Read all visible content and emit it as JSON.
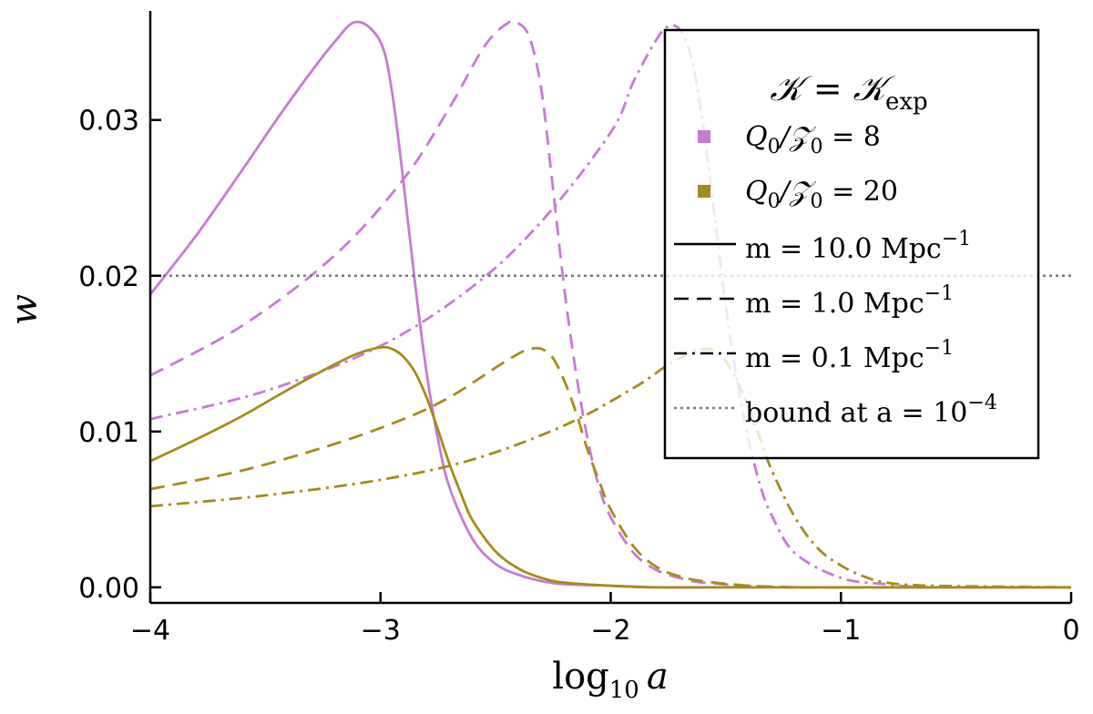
{
  "chart_data": {
    "type": "line",
    "title": "",
    "xlabel_main": "log",
    "xlabel_sub": "10",
    "xlabel_var": "a",
    "ylabel": "w",
    "xlim": [
      -4,
      0
    ],
    "ylim": [
      -0.001,
      0.037
    ],
    "xticks": [
      -4,
      -3,
      -2,
      -1,
      0
    ],
    "xtick_labels": [
      "−4",
      "−3",
      "−2",
      "−1",
      "0"
    ],
    "yticks": [
      0.0,
      0.01,
      0.02,
      0.03
    ],
    "ytick_labels": [
      "0.00",
      "0.01",
      "0.02",
      "0.03"
    ],
    "grid": false,
    "legend_placement": "top-right",
    "bound_value": 0.02,
    "colors": {
      "Q8": "#c77ad6",
      "Q20": "#a68b1a",
      "bound": "#7a7a7a"
    },
    "legend": {
      "title": {
        "lhs": "𝒦 = 𝒦",
        "sub": "exp"
      },
      "items": [
        {
          "key": "q8",
          "base": "Q",
          "sub": "0",
          "rest": "/𝒵",
          "sub2": "0",
          "tail": " = 8",
          "color": "#c77ad6",
          "marker": "square"
        },
        {
          "key": "q20",
          "base": "Q",
          "sub": "0",
          "rest": "/𝒵",
          "sub2": "0",
          "tail": " = 20",
          "color": "#a68b1a",
          "marker": "square"
        },
        {
          "key": "m10",
          "text": "m = 10.0 Mpc",
          "sup": "−1",
          "dash": "solid"
        },
        {
          "key": "m1",
          "text": "m = 1.0 Mpc",
          "sup": "−1",
          "dash": "dash"
        },
        {
          "key": "m01",
          "text": "m = 0.1 Mpc",
          "sup": "−1",
          "dash": "dashdot"
        },
        {
          "key": "bound",
          "text": "bound at a = 10",
          "sup": "−4",
          "dash": "dot"
        }
      ]
    },
    "series": [
      {
        "Q": 8,
        "m": 10.0,
        "color": "#c77ad6",
        "dash": "solid",
        "x": [
          -4.0,
          -3.8,
          -3.6,
          -3.4,
          -3.2,
          -3.1,
          -3.0,
          -2.95,
          -2.9,
          -2.85,
          -2.8,
          -2.75,
          -2.7,
          -2.6,
          -2.5,
          -2.4,
          -2.3,
          -2.2,
          -2.0,
          -1.8,
          -1.5,
          -1.0,
          0.0
        ],
        "y": [
          0.0188,
          0.0226,
          0.0268,
          0.0311,
          0.035,
          0.0363,
          0.035,
          0.0318,
          0.026,
          0.0195,
          0.0138,
          0.0095,
          0.0064,
          0.0031,
          0.0015,
          0.0008,
          0.0004,
          0.0002,
          0.0001,
          0.0,
          0.0,
          0.0,
          0.0
        ]
      },
      {
        "Q": 8,
        "m": 1.0,
        "color": "#c77ad6",
        "dash": "dash",
        "x": [
          -4.0,
          -3.6,
          -3.2,
          -2.9,
          -2.7,
          -2.55,
          -2.45,
          -2.4,
          -2.35,
          -2.3,
          -2.25,
          -2.2,
          -2.15,
          -2.1,
          -2.05,
          -2.0,
          -1.9,
          -1.8,
          -1.7,
          -1.6,
          -1.4,
          -1.2,
          -1.0,
          0.0
        ],
        "y": [
          0.0136,
          0.0168,
          0.0213,
          0.0262,
          0.0308,
          0.0347,
          0.0362,
          0.0362,
          0.0352,
          0.0318,
          0.0255,
          0.019,
          0.0137,
          0.0095,
          0.0064,
          0.0045,
          0.0022,
          0.0011,
          0.0006,
          0.0003,
          0.0001,
          0.0,
          0.0,
          0.0
        ]
      },
      {
        "Q": 8,
        "m": 0.1,
        "color": "#c77ad6",
        "dash": "dashdot",
        "x": [
          -4.0,
          -3.5,
          -3.0,
          -2.6,
          -2.3,
          -2.0,
          -1.9,
          -1.8,
          -1.75,
          -1.7,
          -1.65,
          -1.6,
          -1.55,
          -1.5,
          -1.45,
          -1.4,
          -1.35,
          -1.3,
          -1.2,
          -1.0,
          -0.8,
          -0.6,
          0.0
        ],
        "y": [
          0.0108,
          0.0126,
          0.0155,
          0.0193,
          0.0235,
          0.0292,
          0.0325,
          0.0352,
          0.036,
          0.0358,
          0.034,
          0.0298,
          0.024,
          0.018,
          0.0132,
          0.0094,
          0.0065,
          0.0046,
          0.0022,
          0.0006,
          0.0002,
          0.0,
          0.0
        ]
      },
      {
        "Q": 20,
        "m": 10.0,
        "color": "#a68b1a",
        "dash": "solid",
        "x": [
          -4.0,
          -3.8,
          -3.6,
          -3.4,
          -3.2,
          -3.1,
          -3.0,
          -2.95,
          -2.9,
          -2.85,
          -2.8,
          -2.75,
          -2.7,
          -2.65,
          -2.6,
          -2.5,
          -2.4,
          -2.3,
          -2.2,
          -2.0,
          -1.8,
          -1.5,
          -1.0,
          0.0
        ],
        "y": [
          0.0081,
          0.0095,
          0.011,
          0.0127,
          0.0143,
          0.015,
          0.0154,
          0.0153,
          0.0148,
          0.0138,
          0.0122,
          0.0101,
          0.0079,
          0.006,
          0.0043,
          0.0023,
          0.0012,
          0.0006,
          0.0003,
          0.0001,
          0.0,
          0.0,
          0.0,
          0.0
        ]
      },
      {
        "Q": 20,
        "m": 1.0,
        "color": "#a68b1a",
        "dash": "dash",
        "x": [
          -4.0,
          -3.6,
          -3.2,
          -2.9,
          -2.7,
          -2.5,
          -2.4,
          -2.35,
          -2.3,
          -2.25,
          -2.2,
          -2.15,
          -2.1,
          -2.05,
          -2.0,
          -1.9,
          -1.8,
          -1.7,
          -1.6,
          -1.4,
          -1.2,
          -1.0,
          0.0
        ],
        "y": [
          0.0063,
          0.0075,
          0.0092,
          0.0108,
          0.0122,
          0.0141,
          0.015,
          0.0153,
          0.0153,
          0.0147,
          0.0132,
          0.0112,
          0.0088,
          0.0068,
          0.005,
          0.0026,
          0.0013,
          0.0007,
          0.0004,
          0.0001,
          0.0,
          0.0,
          0.0
        ]
      },
      {
        "Q": 20,
        "m": 0.1,
        "color": "#a68b1a",
        "dash": "dashdot",
        "x": [
          -4.0,
          -3.5,
          -3.0,
          -2.6,
          -2.2,
          -1.9,
          -1.75,
          -1.65,
          -1.6,
          -1.55,
          -1.5,
          -1.45,
          -1.4,
          -1.35,
          -1.3,
          -1.2,
          -1.1,
          -1.0,
          -0.9,
          -0.8,
          -0.6,
          0.0
        ],
        "y": [
          0.0052,
          0.0059,
          0.0069,
          0.0082,
          0.0104,
          0.0128,
          0.0143,
          0.0151,
          0.0153,
          0.0152,
          0.0145,
          0.0132,
          0.0115,
          0.0095,
          0.0075,
          0.0045,
          0.0025,
          0.0014,
          0.0007,
          0.0003,
          0.0001,
          0.0
        ]
      }
    ]
  }
}
